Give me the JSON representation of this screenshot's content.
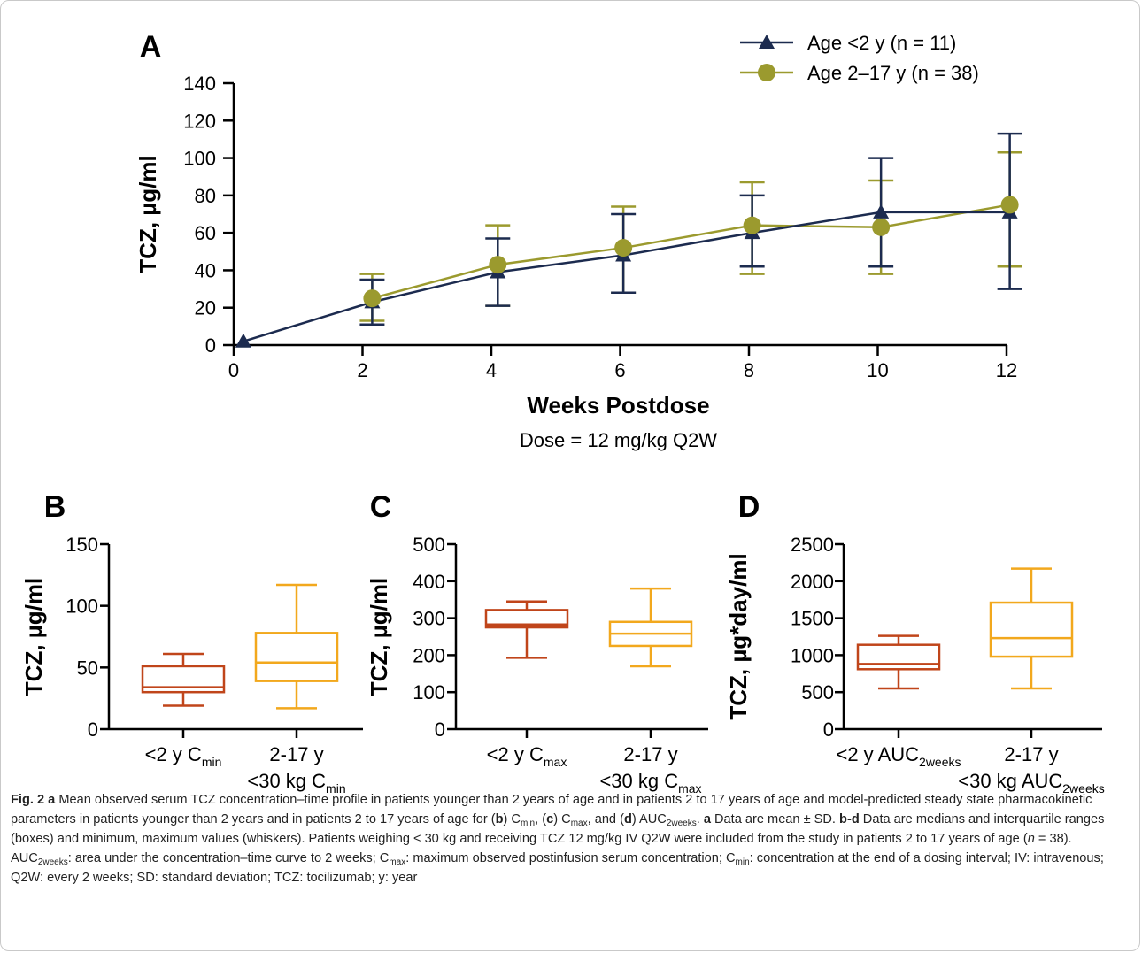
{
  "colors": {
    "series_lt2": "#1c2b4f",
    "series_2to17": "#9b9a2e",
    "box_lt2": "#c0451a",
    "box_2to17": "#f2a81d",
    "axis": "#000000"
  },
  "chart_data": [
    {
      "type": "line",
      "panel_label": "A",
      "xlabel": "Weeks Postdose",
      "subtitle": "Dose = 12 mg/kg Q2W",
      "ylabel": "TCZ, µg/ml",
      "xlim": [
        0,
        12
      ],
      "ylim": [
        0,
        140
      ],
      "x_ticks": [
        "0",
        "2",
        "4",
        "6",
        "8",
        "10",
        "12"
      ],
      "y_ticks": [
        "0",
        "20",
        "40",
        "60",
        "80",
        "100",
        "120",
        "140"
      ],
      "legend_position": "top-right",
      "series": [
        {
          "name": "Age <2 y (n = 11)",
          "marker": "triangle",
          "x": [
            0.15,
            2.15,
            4.1,
            6.05,
            8.05,
            10.05,
            12.05
          ],
          "y": [
            2,
            23,
            39,
            48,
            60,
            71,
            71
          ],
          "sd_low": [
            2,
            11,
            21,
            28,
            42,
            42,
            30
          ],
          "sd_high": [
            2,
            35,
            57,
            70,
            80,
            100,
            113
          ]
        },
        {
          "name": "Age 2–17 y (n = 38)",
          "marker": "circle",
          "x": [
            2.15,
            4.1,
            6.05,
            8.05,
            10.05,
            12.05
          ],
          "y": [
            25,
            43,
            52,
            64,
            63,
            75
          ],
          "sd_low": [
            13,
            21,
            28,
            38,
            38,
            42
          ],
          "sd_high": [
            38,
            64,
            74,
            87,
            88,
            103
          ]
        }
      ]
    },
    {
      "type": "box",
      "panel_label": "B",
      "ylabel": "TCZ, µg/ml",
      "ylim": [
        0,
        150
      ],
      "y_ticks": [
        "0",
        "50",
        "100",
        "150"
      ],
      "categories": [
        {
          "line1": "<2 y C",
          "sub1": "min",
          "line2": "",
          "sub2": ""
        },
        {
          "line1": "2-17 y",
          "sub1": "",
          "line2": "<30 kg C",
          "sub2": "min"
        }
      ],
      "boxes": [
        {
          "min": 19,
          "q1": 30,
          "median": 34,
          "q3": 51,
          "max": 61
        },
        {
          "min": 17,
          "q1": 39,
          "median": 54,
          "q3": 78,
          "max": 117
        }
      ]
    },
    {
      "type": "box",
      "panel_label": "C",
      "ylabel": "TCZ, µg/ml",
      "ylim": [
        0,
        500
      ],
      "y_ticks": [
        "0",
        "100",
        "200",
        "300",
        "400",
        "500"
      ],
      "categories": [
        {
          "line1": "<2 y C",
          "sub1": "max",
          "line2": "",
          "sub2": ""
        },
        {
          "line1": "2-17 y",
          "sub1": "",
          "line2": "<30 kg C",
          "sub2": "max"
        }
      ],
      "boxes": [
        {
          "min": 193,
          "q1": 275,
          "median": 283,
          "q3": 322,
          "max": 345
        },
        {
          "min": 170,
          "q1": 225,
          "median": 258,
          "q3": 290,
          "max": 380
        }
      ]
    },
    {
      "type": "box",
      "panel_label": "D",
      "ylabel": "TCZ, µg*day/ml",
      "ylim": [
        0,
        2500
      ],
      "y_ticks": [
        "0",
        "500",
        "1000",
        "1500",
        "2000",
        "2500"
      ],
      "categories": [
        {
          "line1": "<2 y AUC",
          "sub1": "2weeks",
          "line2": "",
          "sub2": ""
        },
        {
          "line1": "2-17 y",
          "sub1": "",
          "line2": "<30 kg AUC",
          "sub2": "2weeks"
        }
      ],
      "boxes": [
        {
          "min": 550,
          "q1": 810,
          "median": 880,
          "q3": 1140,
          "max": 1260
        },
        {
          "min": 550,
          "q1": 980,
          "median": 1230,
          "q3": 1710,
          "max": 2170
        }
      ]
    }
  ],
  "caption": {
    "fig_label": "Fig. 2",
    "segments": [
      [
        "b",
        "Fig. 2 a"
      ],
      [
        "",
        " Mean observed serum TCZ concentration–time profile in patients younger than 2 years of age and in patients 2 to 17 years of age and model-predicted steady state pharmacokinetic parameters in patients younger than 2 years and in patients 2 to 17 years of age for ("
      ],
      [
        "b",
        "b"
      ],
      [
        "",
        ") C"
      ],
      [
        "sub",
        "min"
      ],
      [
        "",
        ", ("
      ],
      [
        "b",
        "c"
      ],
      [
        "",
        ") C"
      ],
      [
        "sub",
        "max"
      ],
      [
        "",
        ", and ("
      ],
      [
        "b",
        "d"
      ],
      [
        "",
        ") AUC"
      ],
      [
        "sub",
        "2weeks"
      ],
      [
        "",
        ". "
      ],
      [
        "b",
        "a"
      ],
      [
        "",
        " Data are mean ± SD. "
      ],
      [
        "b",
        "b-d"
      ],
      [
        "",
        " Data are medians and interquartile ranges (boxes) and minimum, maximum values (whiskers). Patients weighing < 30 kg and receiving TCZ 12 mg/kg IV Q2W were included from the study in patients 2 to 17 years of age ("
      ],
      [
        "i",
        "n"
      ],
      [
        "",
        " = 38). AUC"
      ],
      [
        "sub",
        "2weeks"
      ],
      [
        "",
        ": area under the concentration–time curve to 2 weeks; C"
      ],
      [
        "sub",
        "max"
      ],
      [
        "",
        ": maximum observed postinfusion serum concentration; C"
      ],
      [
        "sub",
        "min"
      ],
      [
        "",
        ": concentration at the end of a dosing interval; IV: intravenous; Q2W: every 2 weeks; SD: standard deviation; TCZ: tocilizumab; y: year"
      ]
    ]
  }
}
